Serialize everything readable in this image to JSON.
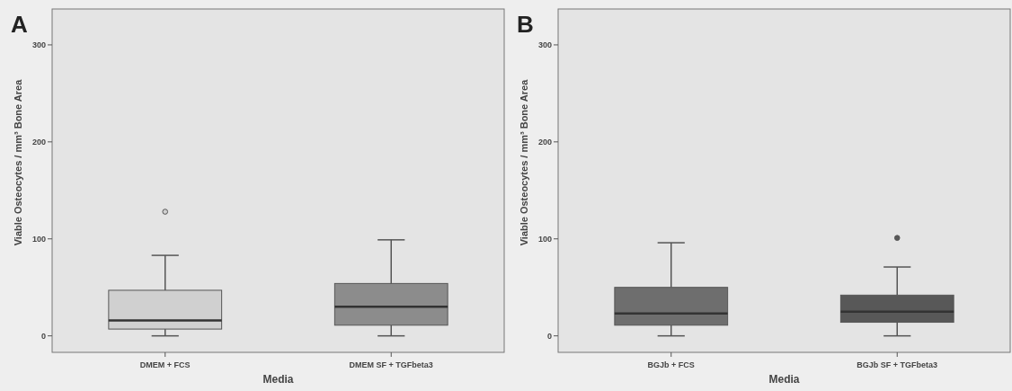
{
  "chart_data": [
    {
      "type": "box",
      "title": "A",
      "xlabel": "Media",
      "ylabel": "Viable Osteocytes / mm³ Bone Area",
      "categories": [
        "DMEM + FCS",
        "DMEM SF + TGFbeta3"
      ],
      "colors": [
        "#d0d0d0",
        "#8c8c8c"
      ],
      "boxes": [
        {
          "low": 0,
          "q1": 7,
          "median": 16,
          "q3": 47,
          "high": 83,
          "outliers": [
            128
          ]
        },
        {
          "low": 0,
          "q1": 11,
          "median": 30,
          "q3": 54,
          "high": 99
        }
      ],
      "ylim": [
        -17,
        337
      ],
      "yticks": [
        0,
        100,
        200,
        300
      ],
      "grid": false
    },
    {
      "type": "box",
      "title": "B",
      "xlabel": "Media",
      "ylabel": "Viable Osteocytes / mm³ Bone Area",
      "categories": [
        "BGJb + FCS",
        "BGJb SF + TGFbeta3"
      ],
      "colors": [
        "#6e6e6e",
        "#585858"
      ],
      "boxes": [
        {
          "low": 0,
          "q1": 11,
          "median": 23,
          "q3": 50,
          "high": 96
        },
        {
          "low": 0,
          "q1": 14,
          "median": 25,
          "q3": 42,
          "high": 71,
          "outliers": [
            101
          ]
        }
      ],
      "ylim": [
        -17,
        337
      ],
      "yticks": [
        0,
        100,
        200,
        300
      ],
      "grid": false
    }
  ]
}
